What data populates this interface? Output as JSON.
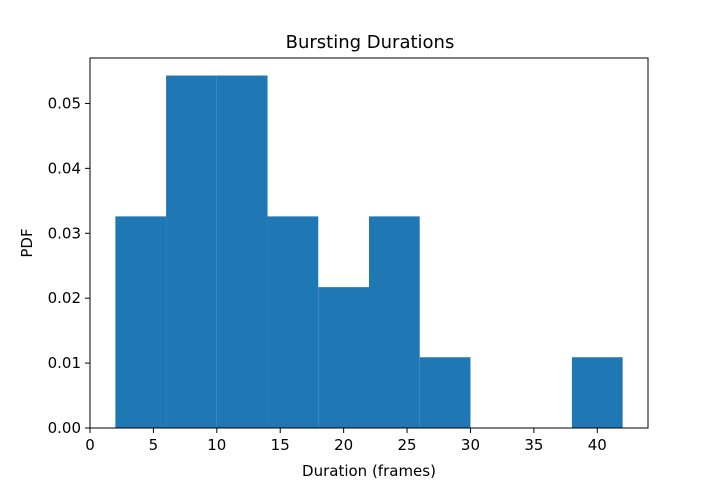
{
  "chart_data": {
    "type": "bar",
    "title": "Bursting Durations",
    "xlabel": "Duration (frames)",
    "ylabel": "PDF",
    "xlim": [
      0,
      44
    ],
    "ylim": [
      0,
      0.057
    ],
    "xticks": [
      0,
      5,
      10,
      15,
      20,
      25,
      30,
      35,
      40
    ],
    "yticks": [
      "0.00",
      "0.01",
      "0.02",
      "0.03",
      "0.04",
      "0.05"
    ],
    "bar_color": "#1f77b4",
    "grid": false,
    "bins": [
      {
        "x0": 2,
        "x1": 6,
        "value": 0.0326
      },
      {
        "x0": 6,
        "x1": 10,
        "value": 0.0543
      },
      {
        "x0": 10,
        "x1": 14,
        "value": 0.0543
      },
      {
        "x0": 14,
        "x1": 18,
        "value": 0.0326
      },
      {
        "x0": 18,
        "x1": 22,
        "value": 0.0217
      },
      {
        "x0": 22,
        "x1": 26,
        "value": 0.0326
      },
      {
        "x0": 26,
        "x1": 30,
        "value": 0.0109
      },
      {
        "x0": 30,
        "x1": 34,
        "value": 0
      },
      {
        "x0": 34,
        "x1": 38,
        "value": 0
      },
      {
        "x0": 38,
        "x1": 42,
        "value": 0.0109
      }
    ]
  }
}
